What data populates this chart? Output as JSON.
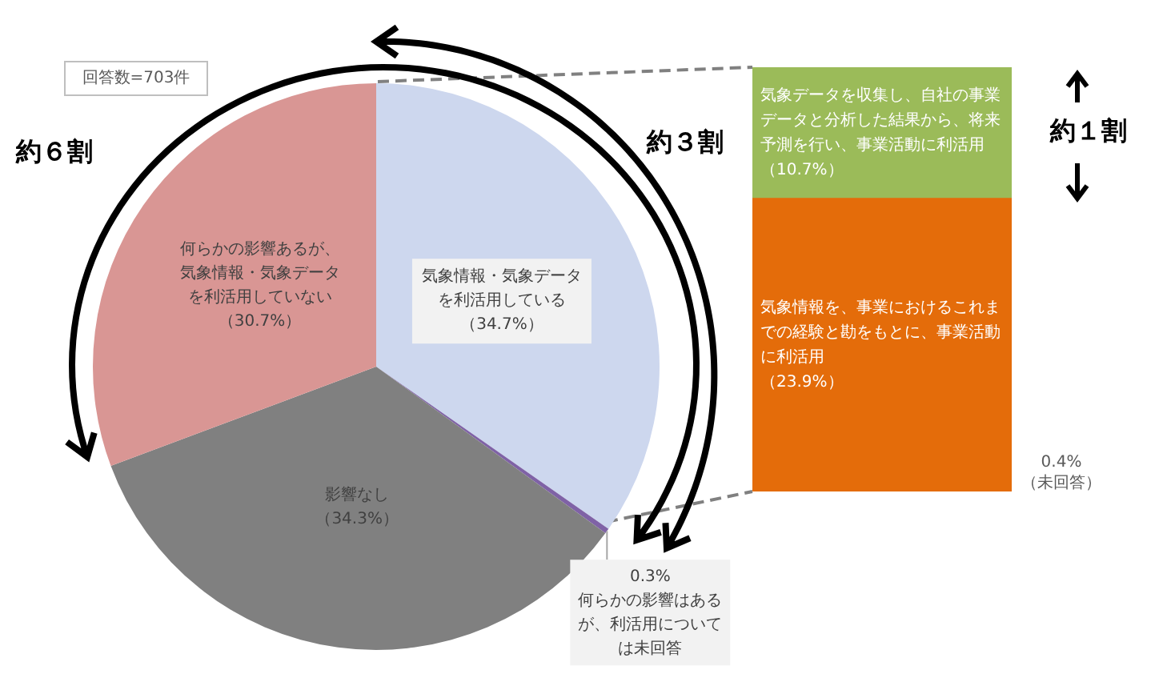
{
  "chart_data": [
    {
      "type": "pie",
      "categories": [
        "気象情報・気象データを利活用している",
        "何らかの影響はあるが、利活用については未回答",
        "影響なし",
        "何らかの影響あるが、気象情報・気象データを利活用していない"
      ],
      "values": [
        34.7,
        0.3,
        34.3,
        30.7
      ],
      "colors": [
        "#cdd7ee",
        "#7f62a6",
        "#808080",
        "#d99694"
      ],
      "value_labels": [
        "（34.7%）",
        "0.3%",
        "（34.3%）",
        "（30.7%）"
      ],
      "annotations": [
        "回答数=703件",
        "約６割",
        "約３割"
      ]
    },
    {
      "type": "bar",
      "stacked": true,
      "categories": [
        null
      ],
      "series": [
        {
          "name": "気象情報を、事業におけるこれまでの経験と勘をもとに、事業活動に利活用",
          "color": "#e46c0a",
          "values": [
            23.9
          ],
          "value_labels": [
            "（23.9%）"
          ]
        },
        {
          "name": "気象データを収集し、自社の事業データと分析した結果から、将来予測を行い、事業活動に利活用",
          "color": "#9bbb59",
          "values": [
            10.7
          ],
          "value_labels": [
            "（10.7%）"
          ]
        }
      ],
      "tick_labels": false,
      "annotations": [
        "約１割",
        "0.4%",
        "（未回答）"
      ]
    }
  ]
}
